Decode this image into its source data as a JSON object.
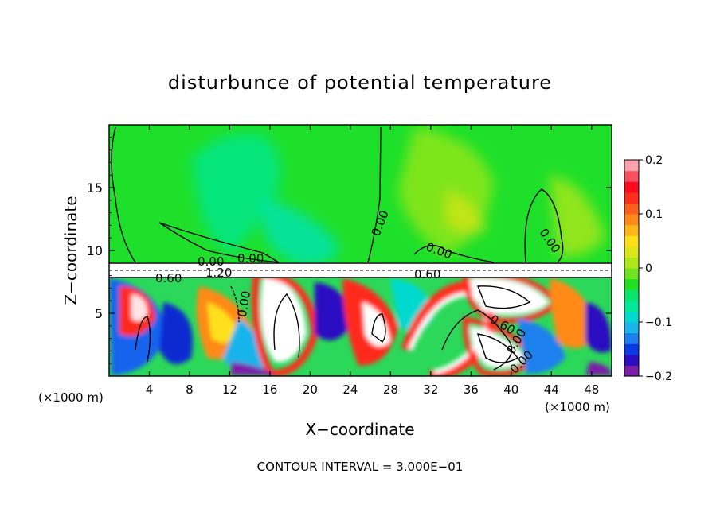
{
  "chart_data": {
    "type": "heatmap",
    "title": "disturbunce of potential temperature",
    "xlabel": "X−coordinate",
    "ylabel": "Z−coordinate",
    "x_unit_left": "(×1000 m)",
    "x_unit_right": "(×1000 m)",
    "xlim": [
      0,
      50
    ],
    "ylim": [
      0,
      20
    ],
    "xticks": [
      4,
      8,
      12,
      16,
      20,
      24,
      28,
      32,
      36,
      40,
      44,
      48
    ],
    "yticks": [
      5,
      10,
      15
    ],
    "colorbar": {
      "range": [
        -0.2,
        0.2
      ],
      "ticks": [
        "0.2",
        "0.1",
        "0",
        "−0.1",
        "−0.2"
      ],
      "tick_values": [
        0.2,
        0.1,
        0,
        -0.1,
        -0.2
      ],
      "colors": [
        "#7c1fa8",
        "#2b0cc0",
        "#0a3ae6",
        "#1a80ee",
        "#18b4ea",
        "#00d9d0",
        "#00e89c",
        "#09e46c",
        "#20e020",
        "#6ee41f",
        "#aee71a",
        "#dce61a",
        "#fee01a",
        "#ffb619",
        "#ff8a19",
        "#ff5f1c",
        "#ff2f1e",
        "#ff0a1e",
        "#fa5060",
        "#fca2ac"
      ]
    },
    "contour_labels": [
      "0.00",
      "0.00",
      "0.00",
      "0.00",
      "0.00",
      "0.60",
      "0.60",
      "0.60",
      "1.20",
      "0.00",
      "0.00",
      "0.00"
    ],
    "annotation": "CONTOUR INTERVAL = 3.000E−01"
  }
}
